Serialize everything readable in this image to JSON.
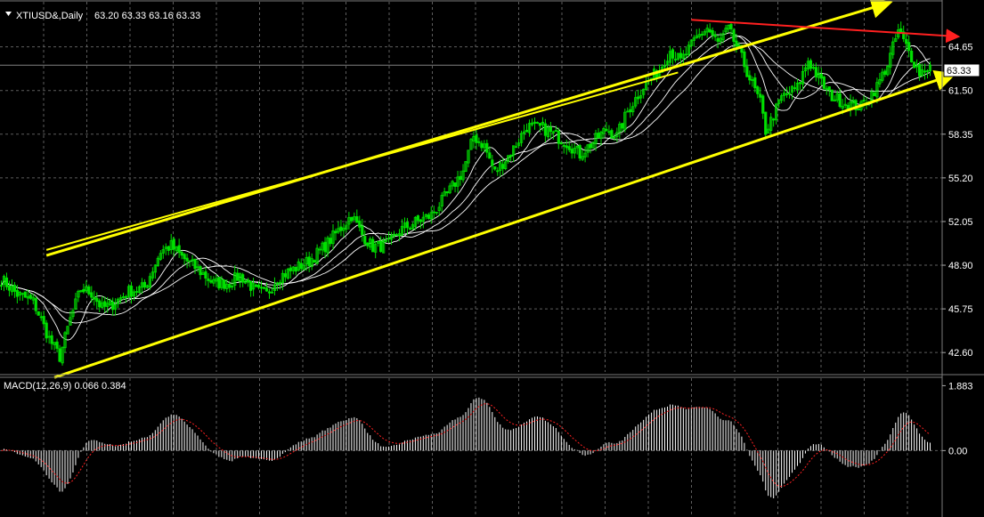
{
  "colors": {
    "background": "#000000",
    "bull_candle": "#00e000",
    "bear_candle": "#00e000",
    "moving_average": "#ffffff",
    "channel_line": "#ffff00",
    "arrow": "#ff2020",
    "macd_histogram": "#ffffff",
    "macd_signal": "#ff2020",
    "grid": "#5e5e5e",
    "price_tag_bg": "#ffffff",
    "price_tag_text": "#000000"
  },
  "main_panel": {
    "header_icon": "triangle-down-icon",
    "symbol_label": "XTIUSD&,Daily",
    "ohlc_label": "63.20 63.33 63.16 63.33",
    "current_price_tag": "63.33"
  },
  "macd_panel": {
    "header_label": "MACD(12,26,9) 0.066 0.384"
  },
  "chart_data": [
    {
      "type": "candlestick",
      "title": "",
      "timeframe": "Daily",
      "y_ticks": [
        "64.65",
        "61.50",
        "58.35",
        "55.20",
        "52.05",
        "48.90",
        "45.75",
        "42.60"
      ],
      "ylim": [
        41.2,
        67.9
      ],
      "current_price": 63.33,
      "grid": true,
      "anchors": [
        [
          0,
          47.9
        ],
        [
          6,
          46.8
        ],
        [
          12,
          46.3
        ],
        [
          18,
          43.6
        ],
        [
          22,
          42.3
        ],
        [
          26,
          45.0
        ],
        [
          30,
          47.2
        ],
        [
          34,
          46.9
        ],
        [
          38,
          45.8
        ],
        [
          42,
          46.1
        ],
        [
          48,
          47.0
        ],
        [
          54,
          47.3
        ],
        [
          60,
          49.9
        ],
        [
          64,
          50.3
        ],
        [
          68,
          49.5
        ],
        [
          74,
          48.6
        ],
        [
          80,
          47.6
        ],
        [
          86,
          47.6
        ],
        [
          90,
          48.2
        ],
        [
          96,
          47.0
        ],
        [
          100,
          46.8
        ],
        [
          104,
          48.0
        ],
        [
          110,
          48.6
        ],
        [
          116,
          49.2
        ],
        [
          122,
          50.3
        ],
        [
          128,
          51.6
        ],
        [
          132,
          52.5
        ],
        [
          136,
          51.1
        ],
        [
          140,
          50.2
        ],
        [
          146,
          50.4
        ],
        [
          150,
          51.4
        ],
        [
          156,
          52.0
        ],
        [
          162,
          52.5
        ],
        [
          168,
          54.0
        ],
        [
          174,
          55.7
        ],
        [
          178,
          58.2
        ],
        [
          182,
          57.5
        ],
        [
          186,
          55.6
        ],
        [
          192,
          57.0
        ],
        [
          198,
          58.9
        ],
        [
          204,
          58.8
        ],
        [
          210,
          58.1
        ],
        [
          214,
          57.6
        ],
        [
          218,
          56.9
        ],
        [
          222,
          57.6
        ],
        [
          228,
          58.7
        ],
        [
          232,
          58.2
        ],
        [
          236,
          60.0
        ],
        [
          242,
          61.8
        ],
        [
          248,
          63.0
        ],
        [
          252,
          64.4
        ],
        [
          256,
          63.6
        ],
        [
          262,
          65.3
        ],
        [
          266,
          66.0
        ],
        [
          270,
          64.9
        ],
        [
          274,
          65.9
        ],
        [
          278,
          64.3
        ],
        [
          282,
          62.4
        ],
        [
          286,
          60.6
        ],
        [
          288,
          58.6
        ],
        [
          290,
          59.3
        ],
        [
          294,
          61.0
        ],
        [
          300,
          61.7
        ],
        [
          304,
          63.7
        ],
        [
          308,
          62.4
        ],
        [
          312,
          61.2
        ],
        [
          318,
          60.6
        ],
        [
          324,
          60.3
        ],
        [
          330,
          61.8
        ],
        [
          334,
          63.4
        ],
        [
          338,
          65.8
        ],
        [
          342,
          64.3
        ],
        [
          346,
          62.8
        ],
        [
          350,
          63.3
        ]
      ],
      "channel": {
        "upper": [
          [
            17,
            49.6
          ],
          [
            334,
            67.8
          ]
        ],
        "lower": [
          [
            20,
            40.8
          ],
          [
            358,
            62.6
          ]
        ],
        "mid": [
          [
            17,
            50.0
          ],
          [
            255,
            62.8
          ]
        ]
      },
      "arrow": [
        [
          260,
          66.6
        ],
        [
          360,
          65.4
        ]
      ]
    },
    {
      "type": "macd",
      "title": "MACD(12,26,9) 0.066 0.384",
      "params": [
        12,
        26,
        9
      ],
      "macd_value": 0.066,
      "signal_value": 0.384,
      "y_ticks": [
        "1.883",
        "0.00"
      ],
      "ylim": [
        -1.9,
        2.1
      ]
    }
  ]
}
